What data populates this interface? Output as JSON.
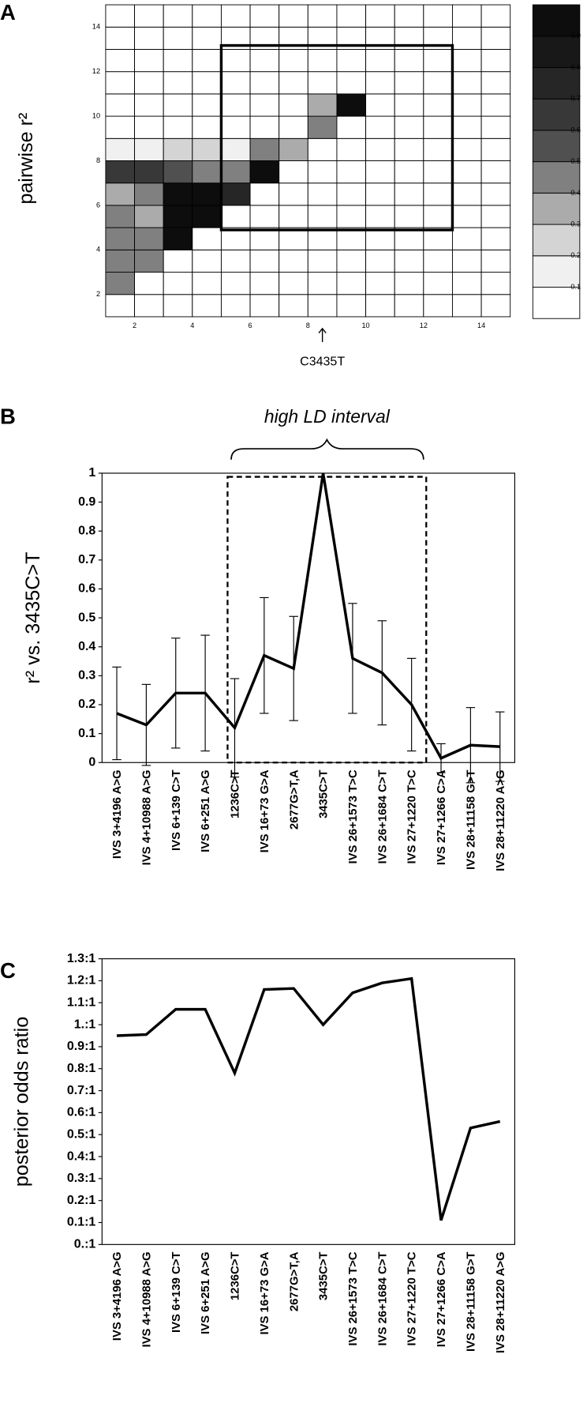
{
  "chart_data": [
    {
      "type": "heatmap",
      "panel_label": "A",
      "y_label": "pairwise r²",
      "annotation": "C3435T",
      "xlim": [
        1,
        15
      ],
      "ylim": [
        1,
        15
      ],
      "xticks": [
        2,
        4,
        6,
        8,
        10,
        12,
        14
      ],
      "yticks": [
        2,
        4,
        6,
        8,
        10,
        12,
        14
      ],
      "colors": [
        "#ffffff",
        "#f0f0f0",
        "#d4d4d4",
        "#ababab",
        "#808080",
        "#505050",
        "#383838",
        "#262626",
        "#181818",
        "#0d0d0d"
      ],
      "colorbar_ticks": [
        0.1,
        0.2,
        0.3,
        0.4,
        0.5,
        0.6,
        0.7,
        0.8,
        0.9
      ],
      "z": [
        [
          0,
          0,
          0,
          0,
          0,
          0,
          0,
          0,
          0,
          0,
          0,
          0,
          0,
          0
        ],
        [
          0.45,
          0,
          0,
          0,
          0,
          0,
          0,
          0,
          0,
          0,
          0,
          0,
          0,
          0
        ],
        [
          0.45,
          0.45,
          0,
          0,
          0,
          0,
          0,
          0,
          0,
          0,
          0,
          0,
          0,
          0
        ],
        [
          0.45,
          0.45,
          0.9,
          0,
          0,
          0,
          0,
          0,
          0,
          0,
          0,
          0,
          0,
          0
        ],
        [
          0.45,
          0.3,
          0.9,
          0.9,
          0,
          0,
          0,
          0,
          0,
          0,
          0,
          0,
          0,
          0
        ],
        [
          0.3,
          0.45,
          0.9,
          0.9,
          0.7,
          0,
          0,
          0,
          0,
          0,
          0,
          0,
          0,
          0
        ],
        [
          0.6,
          0.6,
          0.5,
          0.45,
          0.45,
          0.9,
          0,
          0,
          0,
          0,
          0,
          0,
          0,
          0
        ],
        [
          0.1,
          0.1,
          0.25,
          0.25,
          0.1,
          0.45,
          0.3,
          0,
          0,
          0,
          0,
          0,
          0,
          0
        ],
        [
          0,
          0,
          0,
          0,
          0,
          0,
          0,
          0.45,
          0,
          0,
          0,
          0,
          0,
          0
        ],
        [
          0,
          0,
          0,
          0,
          0,
          0,
          0,
          0.3,
          0.9,
          0,
          0,
          0,
          0,
          0
        ],
        [
          0,
          0,
          0,
          0,
          0,
          0,
          0,
          0,
          0,
          0,
          0,
          0,
          0,
          0
        ],
        [
          0,
          0,
          0,
          0,
          0,
          0,
          0,
          0,
          0,
          0,
          0,
          0,
          0,
          0
        ],
        [
          0,
          0,
          0,
          0,
          0,
          0,
          0,
          0,
          0,
          0,
          0,
          0,
          0,
          0
        ],
        [
          0,
          0,
          0,
          0,
          0,
          0,
          0,
          0,
          0,
          0,
          0,
          0,
          0,
          0
        ]
      ]
    },
    {
      "type": "line",
      "panel_label": "B",
      "y_label": "r² vs. 3435C>T",
      "annotation": "high LD interval",
      "categories": [
        "IVS 3+4196 A>G",
        "IVS 4+10988 A>G",
        "IVS 6+139 C>T",
        "IVS 6+251 A>G",
        "1236C>T",
        "IVS 16+73 G>A",
        "2677G>T,A",
        "3435C>T",
        "IVS 26+1573 T>C",
        "IVS 26+1684 C>T",
        "IVS 27+1220 T>C",
        "IVS 27+1266 C>A",
        "IVS 28+11158 G>T",
        "IVS 28+11220 A>G"
      ],
      "values": [
        0.17,
        0.13,
        0.24,
        0.24,
        0.12,
        0.37,
        0.325,
        1.0,
        0.36,
        0.31,
        0.2,
        0.015,
        0.06,
        0.055
      ],
      "errors": [
        0.16,
        0.14,
        0.19,
        0.2,
        0.17,
        0.2,
        0.18,
        null,
        0.19,
        0.18,
        0.16,
        0.05,
        0.13,
        0.12
      ],
      "color": "#000000",
      "ylim": [
        0,
        1
      ],
      "yticks": [
        0,
        0.1,
        0.2,
        0.3,
        0.4,
        0.5,
        0.6,
        0.7,
        0.8,
        0.9,
        1
      ]
    },
    {
      "type": "line",
      "panel_label": "C",
      "y_label": "posterior odds ratio",
      "categories": [
        "IVS 3+4196 A>G",
        "IVS 4+10988 A>G",
        "IVS 6+139 C>T",
        "IVS 6+251 A>G",
        "1236C>T",
        "IVS 16+73 G>A",
        "2677G>T,A",
        "3435C>T",
        "IVS 26+1573 T>C",
        "IVS 26+1684 C>T",
        "IVS 27+1220 T>C",
        "IVS 27+1266 C>A",
        "IVS 28+11158 G>T",
        "IVS 28+11220 A>G"
      ],
      "values": [
        0.95,
        0.955,
        1.07,
        1.07,
        0.78,
        1.16,
        1.165,
        1.0,
        1.145,
        1.19,
        1.21,
        0.11,
        0.53,
        0.56
      ],
      "color": "#000000",
      "ylim": [
        0,
        1.3
      ],
      "yticks": [
        {
          "value": 0,
          "label": "0.:1"
        },
        {
          "value": 0.1,
          "label": "0.1:1"
        },
        {
          "value": 0.2,
          "label": "0.2:1"
        },
        {
          "value": 0.3,
          "label": "0.3:1"
        },
        {
          "value": 0.4,
          "label": "0.4:1"
        },
        {
          "value": 0.5,
          "label": "0.5:1"
        },
        {
          "value": 0.6,
          "label": "0.6:1"
        },
        {
          "value": 0.7,
          "label": "0.7:1"
        },
        {
          "value": 0.8,
          "label": "0.8:1"
        },
        {
          "value": 0.9,
          "label": "0.9:1"
        },
        {
          "value": 1,
          "label": "1.:1"
        },
        {
          "value": 1.1,
          "label": "1.1:1"
        },
        {
          "value": 1.2,
          "label": "1.2:1"
        },
        {
          "value": 1.3,
          "label": "1.3:1"
        }
      ]
    }
  ]
}
